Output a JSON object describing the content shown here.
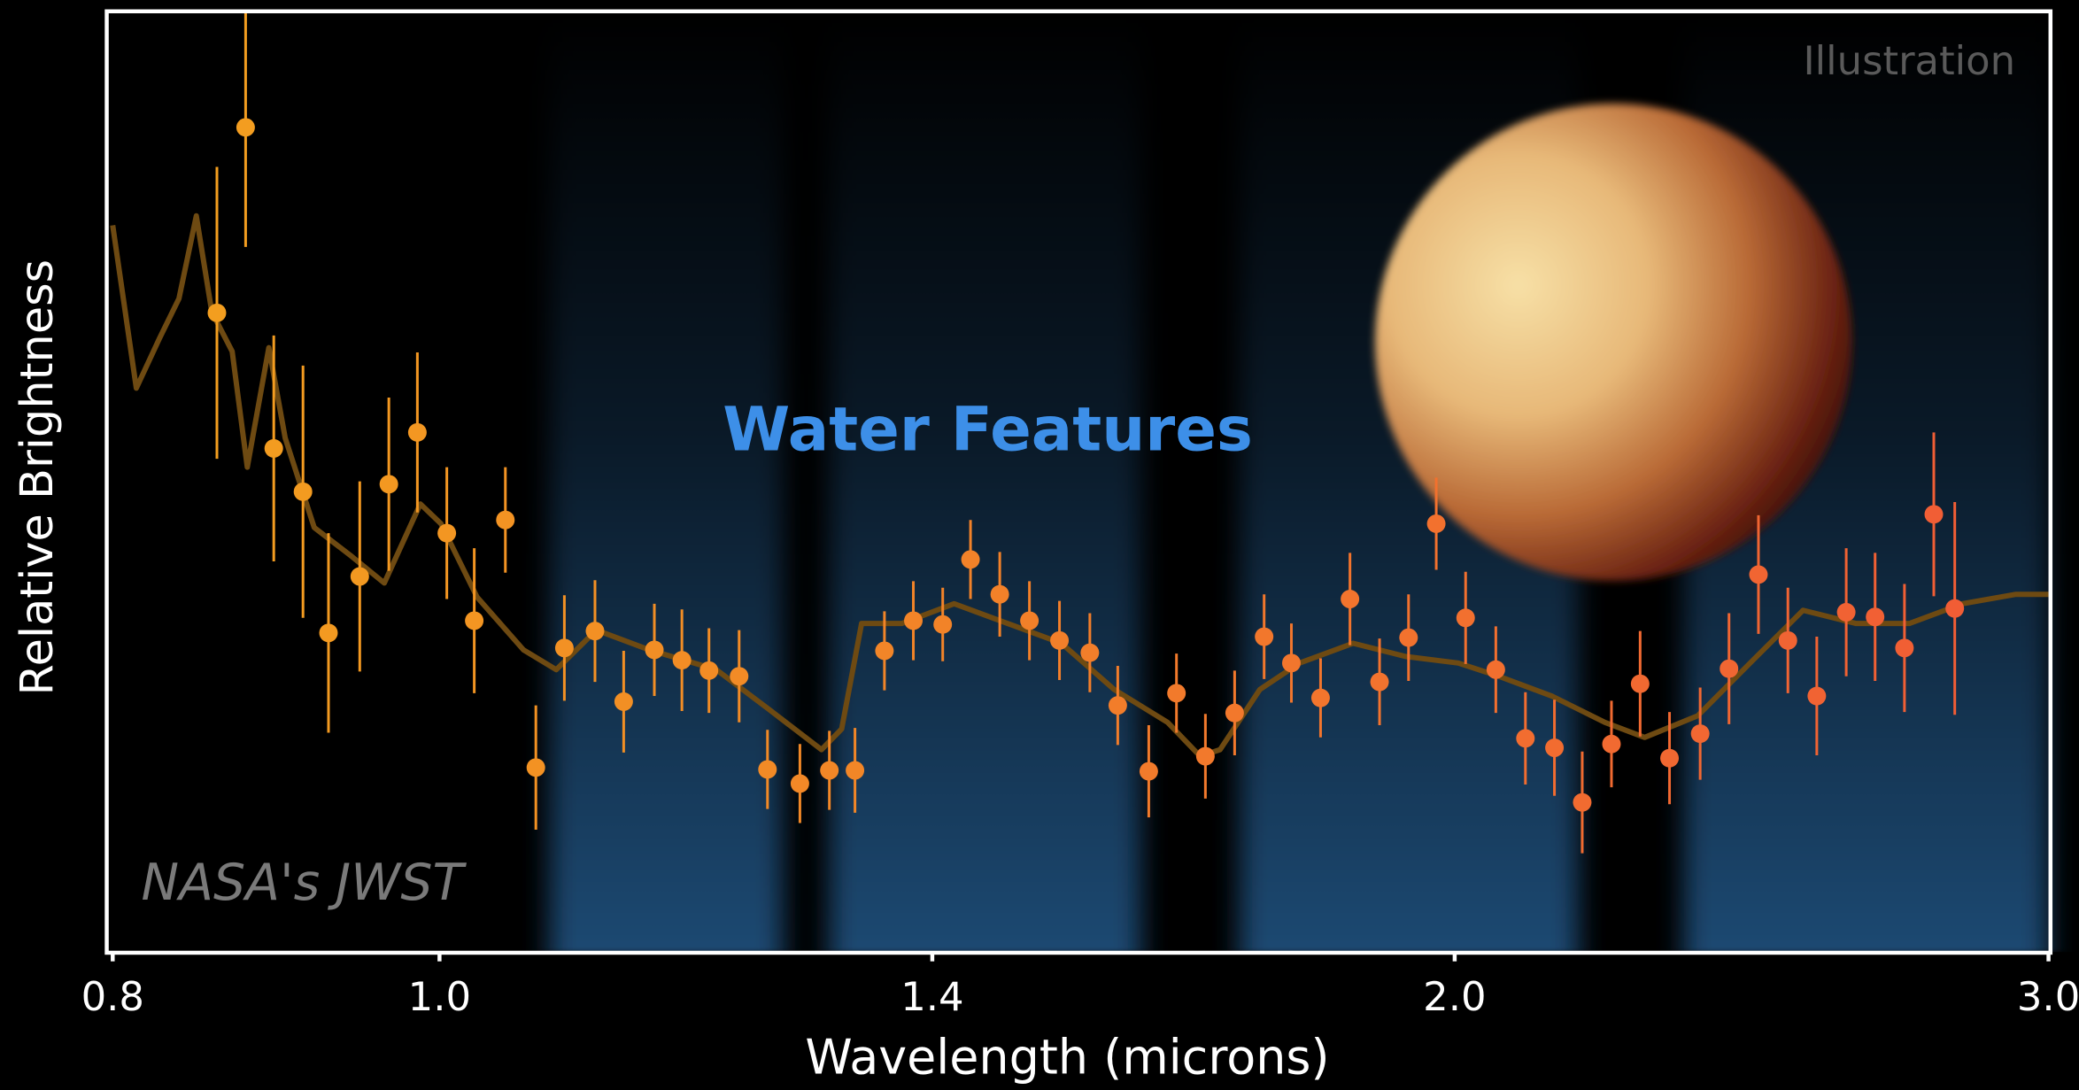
{
  "chart_data": {
    "type": "scatter",
    "annotation_corner": "Illustration",
    "annotation": "Water Features",
    "credit": "NASA's JWST",
    "x_label": "Wavelength (microns)",
    "y_label": "Relative Brightness",
    "x_scale": "log",
    "xlim": [
      0.8,
      3
    ],
    "xticks": [
      0.8,
      {
        "value": 1,
        "label": "1.0"
      },
      1.4,
      {
        "value": 2,
        "label": "2.0"
      },
      {
        "value": 3,
        "label": "3.0"
      }
    ],
    "ylim": [
      0,
      100
    ],
    "bands": [
      [
        1.078,
        1.264
      ],
      [
        1.305,
        1.614
      ],
      [
        1.727,
        2.176
      ],
      [
        2.339,
        3.0
      ]
    ],
    "band_color": "#1f4a72",
    "series": [
      {
        "color_gradient": [
          "#f3a21e",
          "#f15a36"
        ],
        "x": [
          0.859,
          0.876,
          0.893,
          0.911,
          0.927,
          0.947,
          0.966,
          0.985,
          1.005,
          1.024,
          1.046,
          1.068,
          1.089,
          1.112,
          1.134,
          1.158,
          1.18,
          1.202,
          1.227,
          1.251,
          1.279,
          1.305,
          1.328,
          1.355,
          1.382,
          1.41,
          1.437,
          1.466,
          1.496,
          1.527,
          1.559,
          1.589,
          1.623,
          1.654,
          1.687,
          1.721,
          1.756,
          1.789,
          1.825,
          1.862,
          1.9,
          1.938,
          1.975,
          2.015,
          2.057,
          2.099,
          2.141,
          2.182,
          2.226,
          2.27,
          2.316,
          2.365,
          2.412,
          2.461,
          2.511,
          2.561,
          2.613,
          2.665,
          2.719,
          2.774,
          2.814
        ],
        "values": [
          67.9,
          87.6,
          53.5,
          48.9,
          33.9,
          39.9,
          49.7,
          55.2,
          44.5,
          35.2,
          45.9,
          19.6,
          32.3,
          34.1,
          26.6,
          32.1,
          31.0,
          29.9,
          29.3,
          19.4,
          17.9,
          19.3,
          19.3,
          32.0,
          35.2,
          34.8,
          41.7,
          38.0,
          35.2,
          33.1,
          31.8,
          26.2,
          19.2,
          27.5,
          20.8,
          25.4,
          33.5,
          30.7,
          27.0,
          37.5,
          28.7,
          33.4,
          45.5,
          35.5,
          30.0,
          22.7,
          21.7,
          15.9,
          22.1,
          28.5,
          20.6,
          23.2,
          30.1,
          40.1,
          33.1,
          27.2,
          36.1,
          35.6,
          32.3,
          46.5,
          36.5
        ],
        "errors": [
          15.5,
          12.7,
          12.0,
          13.4,
          10.6,
          10.1,
          9.2,
          8.5,
          7.0,
          7.7,
          5.6,
          6.6,
          5.6,
          5.4,
          5.4,
          4.9,
          5.4,
          4.5,
          4.9,
          4.2,
          4.2,
          4.2,
          4.5,
          4.2,
          4.2,
          3.9,
          4.2,
          4.5,
          4.2,
          4.2,
          4.2,
          4.2,
          4.9,
          4.2,
          4.5,
          4.5,
          4.5,
          4.2,
          4.2,
          4.9,
          4.6,
          4.6,
          4.9,
          4.9,
          4.6,
          4.9,
          5.1,
          5.4,
          4.6,
          5.6,
          4.9,
          4.9,
          5.9,
          6.3,
          5.6,
          6.3,
          6.8,
          6.8,
          6.8,
          8.7,
          11.3
        ]
      }
    ],
    "model": {
      "color": "#6e4a12",
      "x": [
        0.8,
        0.813,
        0.826,
        0.837,
        0.847,
        0.856,
        0.868,
        0.877,
        0.89,
        0.9,
        0.918,
        0.942,
        0.963,
        0.987,
        1.001,
        1.026,
        1.059,
        1.083,
        1.113,
        1.154,
        1.208,
        1.252,
        1.298,
        1.316,
        1.334,
        1.371,
        1.421,
        1.474,
        1.529,
        1.585,
        1.644,
        1.681,
        1.704,
        1.751,
        1.799,
        1.866,
        1.934,
        2.005,
        2.061,
        2.137,
        2.216,
        2.277,
        2.361,
        2.447,
        2.537,
        2.631,
        2.728,
        2.829,
        2.934,
        3.0
      ],
      "values": [
        77.2,
        59.9,
        65.2,
        69.4,
        78.2,
        68.0,
        63.8,
        51.5,
        64.2,
        54.6,
        45.1,
        42.0,
        39.2,
        47.6,
        45.5,
        37.7,
        32.1,
        30.0,
        34.2,
        32.1,
        30.0,
        25.8,
        21.5,
        23.7,
        34.9,
        34.9,
        37.0,
        34.9,
        32.8,
        27.9,
        24.4,
        20.8,
        21.5,
        27.9,
        30.7,
        32.8,
        31.4,
        30.7,
        29.3,
        27.2,
        24.4,
        22.8,
        25.1,
        30.7,
        36.3,
        34.9,
        34.9,
        37.0,
        38.0,
        38.0
      ]
    }
  }
}
